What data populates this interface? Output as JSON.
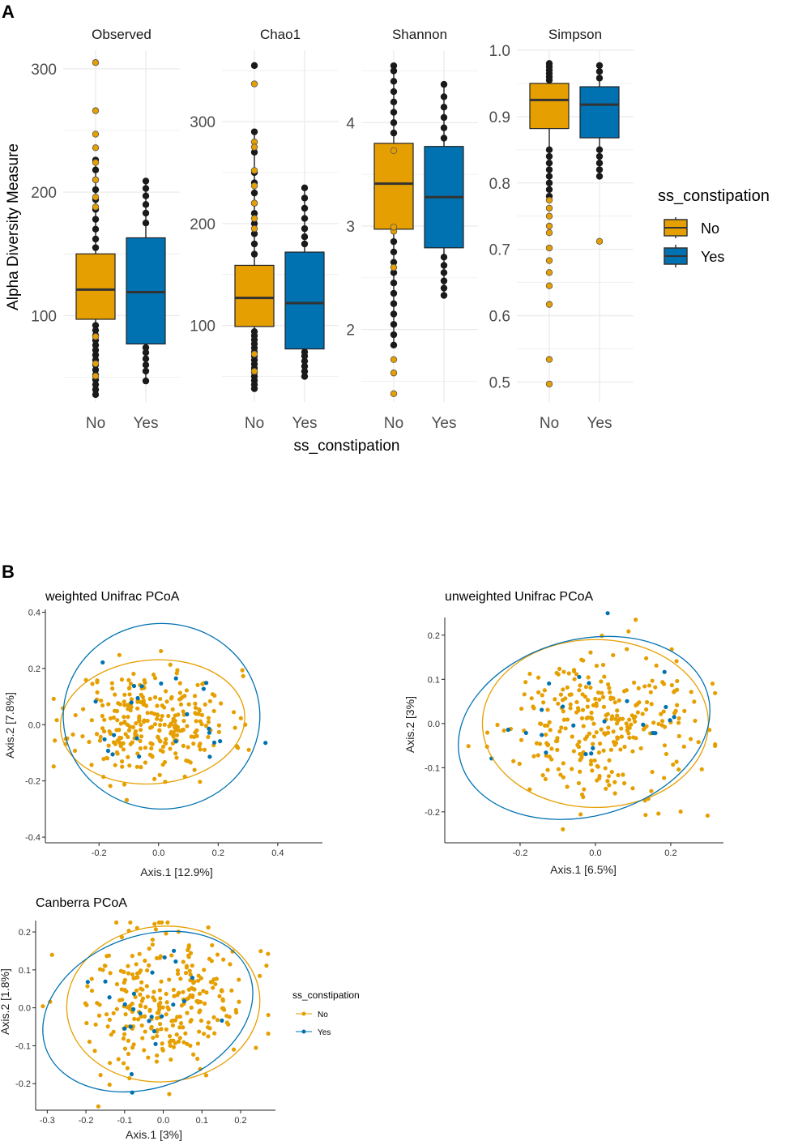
{
  "panel_a_letter": "A",
  "panel_b_letter": "B",
  "colors": {
    "no": "#E69F00",
    "yes": "#0072B2",
    "grid": "#ebebeb",
    "median": "#333333",
    "outlier": "#1a1a1a"
  },
  "chart_data": [
    {
      "type": "boxplot",
      "title": "Observed",
      "ylabel": "Alpha Diversity Measure",
      "xlabel": "ss_constipation",
      "categories": [
        "No",
        "Yes"
      ],
      "ylim": [
        30,
        315
      ],
      "yticks": [
        100,
        200,
        300
      ],
      "boxes": [
        {
          "group": "No",
          "q1": 97,
          "median": 121,
          "q3": 150,
          "whisker_low": 40,
          "whisker_high": 228,
          "outliers_dark": [
            36,
            40,
            44,
            48,
            52,
            56,
            60,
            64,
            68,
            72,
            76,
            80,
            84,
            88,
            92,
            155,
            162,
            170,
            178,
            186,
            194,
            202,
            210,
            218,
            226
          ],
          "outliers_gold": [
            305,
            266,
            247,
            236,
            224,
            210,
            196,
            188,
            83,
            61,
            51
          ]
        },
        {
          "group": "Yes",
          "q1": 77,
          "median": 119,
          "q3": 163,
          "whisker_low": 47,
          "whisker_high": 209,
          "outliers_dark": [
            47,
            55,
            60,
            65,
            70,
            74,
            175,
            183,
            190,
            197,
            203,
            209
          ]
        }
      ]
    },
    {
      "type": "boxplot",
      "title": "Chao1",
      "categories": [
        "No",
        "Yes"
      ],
      "ylim": [
        25,
        370
      ],
      "yticks": [
        100,
        200,
        300
      ],
      "boxes": [
        {
          "group": "No",
          "q1": 99,
          "median": 127,
          "q3": 159,
          "whisker_low": 38,
          "whisker_high": 290,
          "outliers_dark": [
            38,
            42,
            46,
            50,
            54,
            58,
            62,
            66,
            70,
            74,
            78,
            82,
            86,
            90,
            94,
            170,
            180,
            190,
            200,
            210,
            220,
            230,
            240,
            250,
            270,
            290,
            355
          ],
          "outliers_gold": [
            337,
            280,
            275,
            252,
            237,
            220,
            205,
            195,
            72,
            55
          ]
        },
        {
          "group": "Yes",
          "q1": 77,
          "median": 122,
          "q3": 172,
          "whisker_low": 50,
          "whisker_high": 235,
          "outliers_dark": [
            50,
            55,
            60,
            65,
            70,
            74,
            180,
            187,
            195,
            205,
            215,
            225,
            235
          ]
        }
      ]
    },
    {
      "type": "boxplot",
      "title": "Shannon",
      "categories": [
        "No",
        "Yes"
      ],
      "ylim": [
        1.3,
        4.7
      ],
      "yticks": [
        2,
        3,
        4
      ],
      "boxes": [
        {
          "group": "No",
          "q1": 2.97,
          "median": 3.41,
          "q3": 3.8,
          "whisker_low": 1.85,
          "whisker_high": 4.55,
          "outliers_dark": [
            1.85,
            1.95,
            2.05,
            2.15,
            2.25,
            2.35,
            2.45,
            2.55,
            2.65,
            2.75,
            2.85,
            3.9,
            4.0,
            4.1,
            4.2,
            4.3,
            4.4,
            4.5,
            4.55
          ],
          "outliers_gold": [
            1.38,
            1.58,
            1.71,
            2.6,
            2.95,
            2.99,
            3.73
          ]
        },
        {
          "group": "Yes",
          "q1": 2.79,
          "median": 3.28,
          "q3": 3.77,
          "whisker_low": 2.33,
          "whisker_high": 4.37,
          "outliers_dark": [
            2.33,
            2.4,
            2.47,
            2.55,
            2.62,
            2.7,
            3.85,
            3.95,
            4.05,
            4.15,
            4.25,
            4.37
          ]
        }
      ]
    },
    {
      "type": "boxplot",
      "title": "Simpson",
      "categories": [
        "No",
        "Yes"
      ],
      "ylim": [
        0.47,
        1.0
      ],
      "yticks": [
        0.5,
        0.6,
        0.7,
        0.8,
        0.9,
        1.0
      ],
      "boxes": [
        {
          "group": "No",
          "q1": 0.882,
          "median": 0.925,
          "q3": 0.95,
          "whisker_low": 0.78,
          "whisker_high": 0.98,
          "outliers_dark": [
            0.955,
            0.96,
            0.965,
            0.97,
            0.975,
            0.98,
            0.85,
            0.84,
            0.83,
            0.82,
            0.81,
            0.8,
            0.79,
            0.78
          ],
          "outliers_gold": [
            0.497,
            0.534,
            0.617,
            0.645,
            0.665,
            0.683,
            0.702,
            0.725,
            0.735,
            0.75,
            0.762,
            0.774
          ]
        },
        {
          "group": "Yes",
          "q1": 0.868,
          "median": 0.918,
          "q3": 0.945,
          "whisker_low": 0.81,
          "whisker_high": 0.977,
          "outliers_dark": [
            0.977,
            0.968,
            0.958,
            0.85,
            0.84,
            0.83,
            0.82,
            0.81
          ],
          "outliers_gold": [
            0.712
          ]
        }
      ]
    },
    {
      "type": "scatter",
      "title": "weighted Unifrac PCoA",
      "xlabel": "Axis.1   [12.9%]",
      "ylabel": "Axis.2   [7.8%]",
      "xlim": [
        -0.38,
        0.55
      ],
      "ylim": [
        -0.42,
        0.41
      ],
      "xticks": [
        -0.2,
        0.0,
        0.2,
        0.4
      ],
      "yticks": [
        -0.4,
        -0.2,
        0.0,
        0.2,
        0.4
      ],
      "ellipses": [
        {
          "group": "No",
          "cx": -0.02,
          "cy": 0.01,
          "rx": 0.31,
          "ry": 0.22,
          "angle": -5
        },
        {
          "group": "Yes",
          "cx": 0.01,
          "cy": 0.03,
          "rx": 0.33,
          "ry": 0.33,
          "angle": 0
        }
      ],
      "points_no_count": 300,
      "points_yes_count": 24
    },
    {
      "type": "scatter",
      "title": "unweighted Unifrac PCoA",
      "xlabel": "Axis.1   [6.5%]",
      "ylabel": "Axis.2   [3%]",
      "xlim": [
        -0.4,
        0.34
      ],
      "ylim": [
        -0.27,
        0.24
      ],
      "xticks": [
        -0.2,
        0.0,
        0.2
      ],
      "yticks": [
        -0.2,
        -0.1,
        0.0,
        0.1,
        0.2
      ],
      "ellipses": [
        {
          "group": "No",
          "cx": 0.0,
          "cy": 0.0,
          "rx": 0.3,
          "ry": 0.19,
          "angle": 0
        },
        {
          "group": "Yes",
          "cx": -0.03,
          "cy": -0.01,
          "rx": 0.34,
          "ry": 0.2,
          "angle": -15
        }
      ],
      "points_no_count": 300,
      "points_yes_count": 24
    },
    {
      "type": "scatter",
      "title": "Canberra PCoA",
      "xlabel": "Axis.1   [3%]",
      "ylabel": "Axis.2   [1.8%]",
      "xlim": [
        -0.33,
        0.29
      ],
      "ylim": [
        -0.27,
        0.23
      ],
      "xticks": [
        -0.3,
        -0.2,
        -0.1,
        0.0,
        0.1,
        0.2
      ],
      "yticks": [
        -0.2,
        -0.1,
        0.0,
        0.1,
        0.2
      ],
      "ellipses": [
        {
          "group": "No",
          "cx": 0.0,
          "cy": 0.01,
          "rx": 0.25,
          "ry": 0.205,
          "angle": -5
        },
        {
          "group": "Yes",
          "cx": -0.04,
          "cy": -0.01,
          "rx": 0.28,
          "ry": 0.2,
          "angle": -20
        }
      ],
      "points_no_count": 300,
      "points_yes_count": 24
    }
  ],
  "legend_a": {
    "title": "ss_constipation",
    "items": [
      "No",
      "Yes"
    ]
  },
  "legend_b": {
    "title": "ss_constipation",
    "items": [
      "No",
      "Yes"
    ]
  }
}
